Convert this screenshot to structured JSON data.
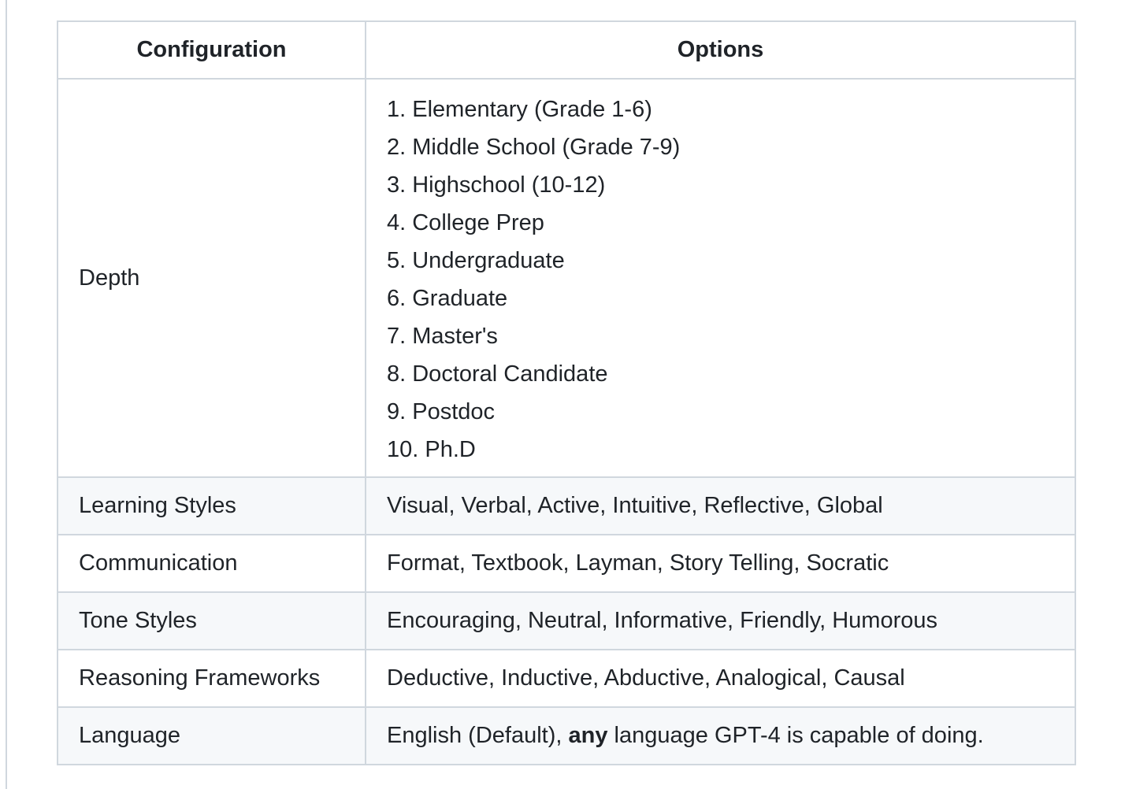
{
  "table": {
    "headers": [
      "Configuration",
      "Options"
    ],
    "depth": {
      "label": "Depth",
      "options": [
        "1. Elementary (Grade 1-6)",
        "2. Middle School (Grade 7-9)",
        "3. Highschool (10-12)",
        "4. College Prep",
        "5. Undergraduate",
        "6. Graduate",
        "7. Master's",
        "8. Doctoral Candidate",
        "9. Postdoc",
        "10. Ph.D"
      ]
    },
    "rows": [
      {
        "label": "Learning Styles",
        "value": "Visual, Verbal, Active, Intuitive, Reflective, Global"
      },
      {
        "label": "Communication",
        "value": "Format, Textbook, Layman, Story Telling, Socratic"
      },
      {
        "label": "Tone Styles",
        "value": "Encouraging, Neutral, Informative, Friendly, Humorous"
      },
      {
        "label": "Reasoning Frameworks",
        "value": "Deductive, Inductive, Abductive, Analogical, Causal"
      }
    ],
    "language": {
      "label": "Language",
      "value_pre": "English (Default), ",
      "value_bold": "any",
      "value_post": " language GPT-4 is capable of doing."
    }
  }
}
